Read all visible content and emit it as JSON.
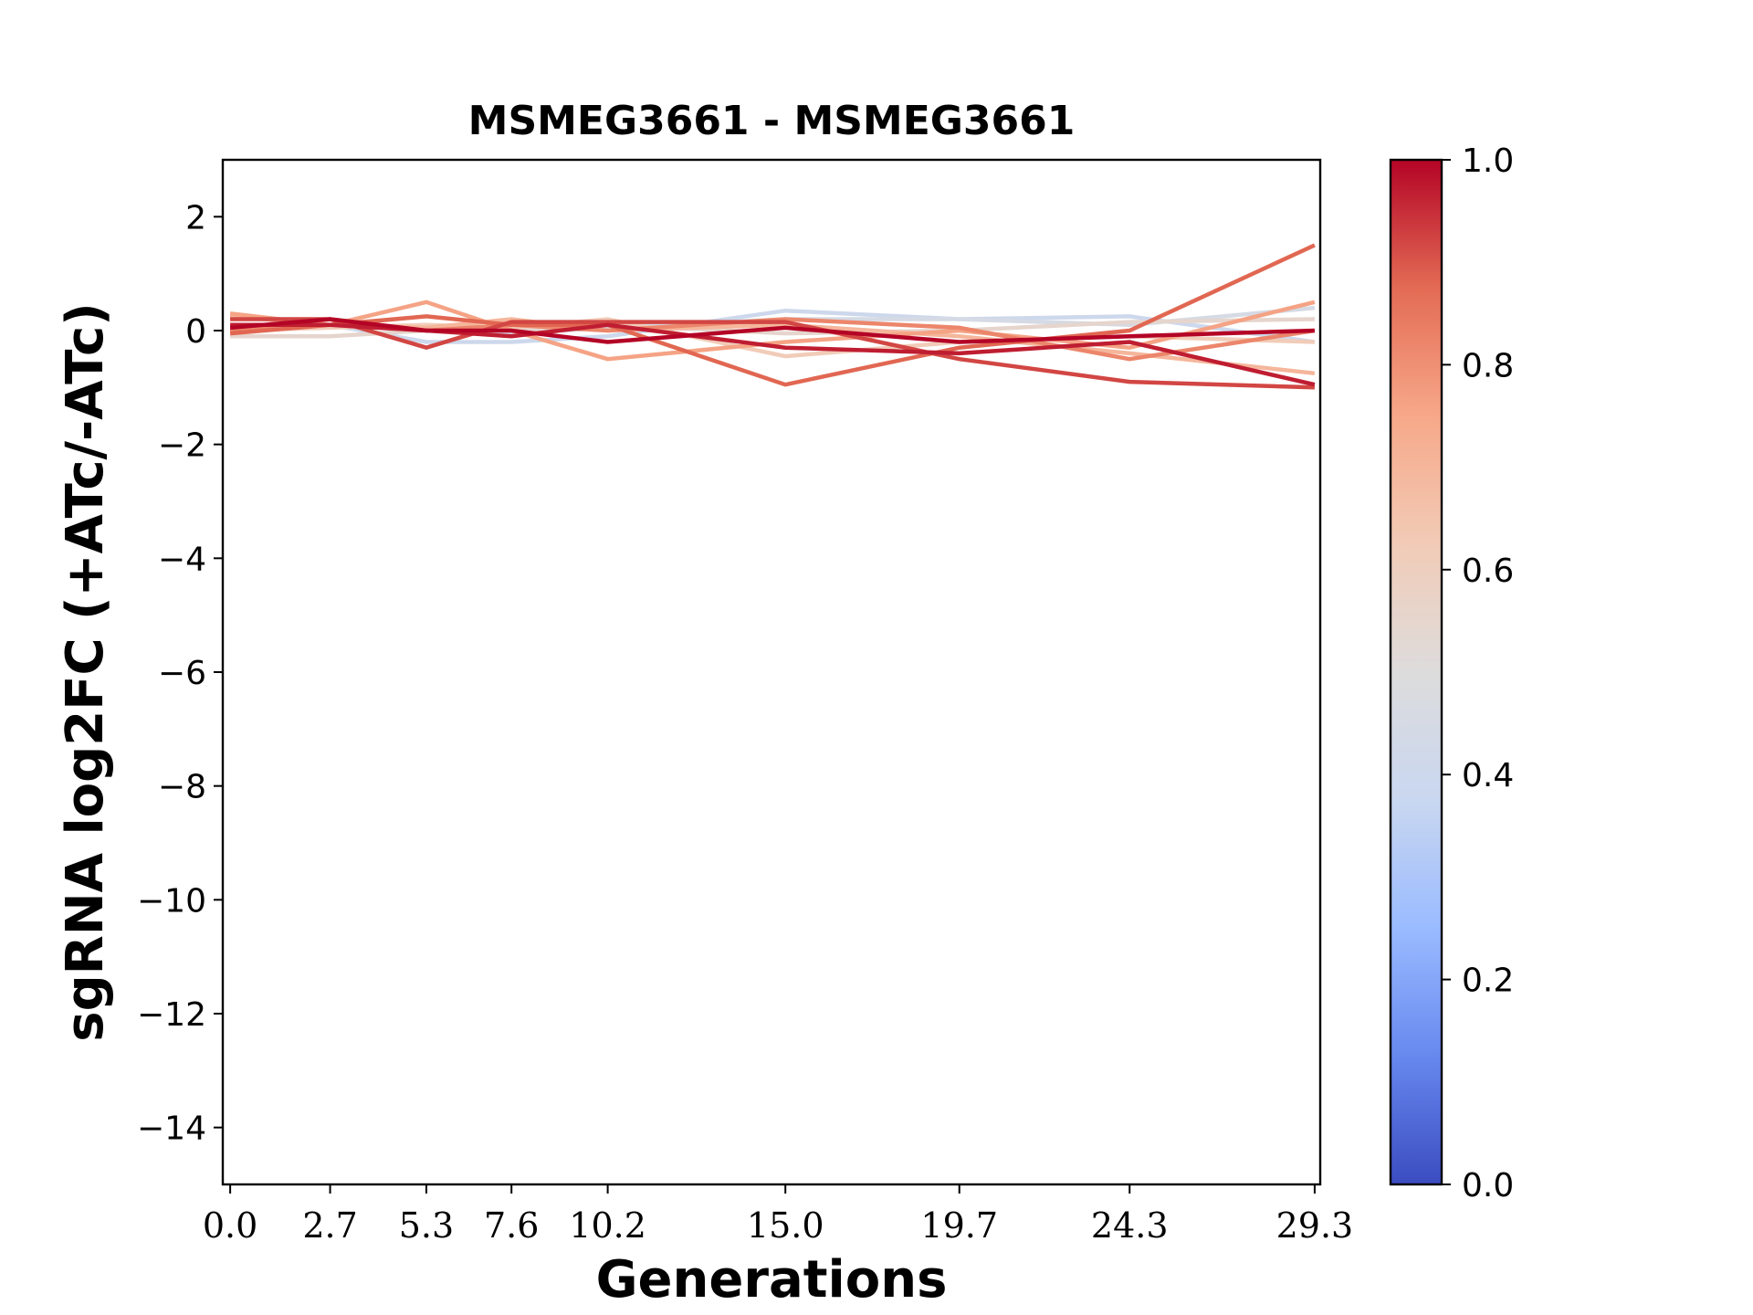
{
  "chart_data": {
    "type": "line",
    "title": "MSMEG3661 - MSMEG3661",
    "xlabel": "Generations",
    "ylabel": "sgRNA log2FC (+ATc/-ATc)",
    "x": [
      0.0,
      2.7,
      5.3,
      7.6,
      10.2,
      15.0,
      19.7,
      24.3,
      29.3
    ],
    "x_tick_labels": [
      "0.0",
      "2.7",
      "5.3",
      "7.6",
      "10.2",
      "15.0",
      "19.7",
      "24.3",
      "29.3"
    ],
    "xlim": [
      -0.2,
      29.45
    ],
    "ylim": [
      -15,
      3
    ],
    "y_ticks": [
      2,
      0,
      -2,
      -4,
      -6,
      -8,
      -10,
      -12,
      -14
    ],
    "y_tick_labels": [
      "2",
      "0",
      "−2",
      "−4",
      "−6",
      "−8",
      "−10",
      "−12",
      "−14"
    ],
    "grid": false,
    "colorbar": {
      "label": "",
      "colormap": "coolwarm",
      "range": [
        0.0,
        1.0
      ],
      "ticks": [
        0.0,
        0.2,
        0.4,
        0.6,
        0.8,
        1.0
      ],
      "tick_labels": [
        "0.0",
        "0.2",
        "0.4",
        "0.6",
        "0.8",
        "1.0"
      ],
      "stops": [
        "#3b4cc0",
        "#6788ee",
        "#9abbff",
        "#c9d7f0",
        "#dddcdc",
        "#f2cbb7",
        "#f7a889",
        "#e36b54",
        "#b40426"
      ]
    },
    "series": [
      {
        "color_value": 0.4,
        "values": [
          0.0,
          0.1,
          -0.2,
          -0.2,
          -0.1,
          0.35,
          0.2,
          0.25,
          -0.2
        ]
      },
      {
        "color_value": 0.45,
        "values": [
          0.05,
          0.1,
          0.05,
          -0.05,
          0.05,
          0.2,
          0.2,
          0.1,
          0.4
        ]
      },
      {
        "color_value": 0.55,
        "values": [
          -0.1,
          -0.1,
          0.0,
          0.0,
          0.1,
          -0.05,
          0.0,
          0.15,
          0.2
        ]
      },
      {
        "color_value": 0.62,
        "values": [
          0.0,
          0.05,
          0.1,
          0.05,
          0.2,
          -0.45,
          -0.2,
          -0.1,
          -0.2
        ]
      },
      {
        "color_value": 0.7,
        "values": [
          0.25,
          0.1,
          0.05,
          0.2,
          0.0,
          0.1,
          -0.1,
          -0.4,
          -0.75
        ]
      },
      {
        "color_value": 0.76,
        "values": [
          0.3,
          0.1,
          0.5,
          0.0,
          -0.5,
          -0.2,
          0.0,
          -0.3,
          0.5
        ]
      },
      {
        "color_value": 0.82,
        "values": [
          0.0,
          0.2,
          0.0,
          0.1,
          0.0,
          0.2,
          0.05,
          -0.5,
          0.0
        ]
      },
      {
        "color_value": 0.88,
        "values": [
          -0.05,
          0.1,
          0.25,
          0.1,
          0.1,
          -0.95,
          -0.3,
          0.0,
          1.5
        ]
      },
      {
        "color_value": 0.92,
        "values": [
          0.2,
          0.2,
          -0.3,
          0.15,
          0.15,
          0.15,
          -0.5,
          -0.9,
          -1.0
        ]
      },
      {
        "color_value": 0.97,
        "values": [
          0.1,
          0.1,
          0.0,
          -0.1,
          0.1,
          -0.3,
          -0.4,
          -0.2,
          -0.95
        ]
      },
      {
        "color_value": 1.0,
        "values": [
          0.05,
          0.2,
          0.0,
          0.0,
          -0.2,
          0.05,
          -0.2,
          -0.1,
          0.0
        ]
      }
    ]
  }
}
